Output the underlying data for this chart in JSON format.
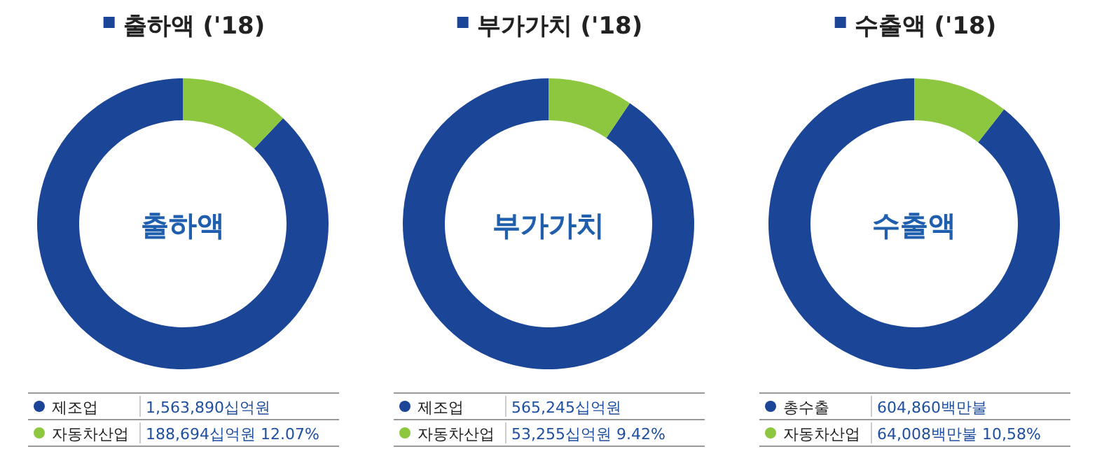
{
  "chart_data": [
    {
      "type": "donut",
      "title": "출하액 ('18)",
      "categories": [
        "제조업",
        "자동차산업"
      ],
      "values": [
        87.93,
        12.07
      ],
      "colors": [
        "#1b4597",
        "#8dc63f"
      ],
      "annotations": [
        "출하액",
        "1,563,890십억원",
        "188,694십억원 12.07%"
      ],
      "legend": "bottom"
    },
    {
      "type": "donut",
      "title": "부가가치 ('18)",
      "categories": [
        "제조업",
        "자동차산업"
      ],
      "values": [
        90.58,
        9.42
      ],
      "colors": [
        "#1b4597",
        "#8dc63f"
      ],
      "annotations": [
        "부가가치",
        "565,245십억원",
        "53,255십억원 9.42%"
      ],
      "legend": "bottom"
    },
    {
      "type": "donut",
      "title": "수출액 ('18)",
      "categories": [
        "총수출",
        "자동차산업"
      ],
      "values": [
        89.42,
        10.58
      ],
      "colors": [
        "#1b4597",
        "#8dc63f"
      ],
      "annotations": [
        "수출액",
        "604,860백만불",
        "64,008백만불 10,58%"
      ],
      "legend": "bottom"
    }
  ]
}
